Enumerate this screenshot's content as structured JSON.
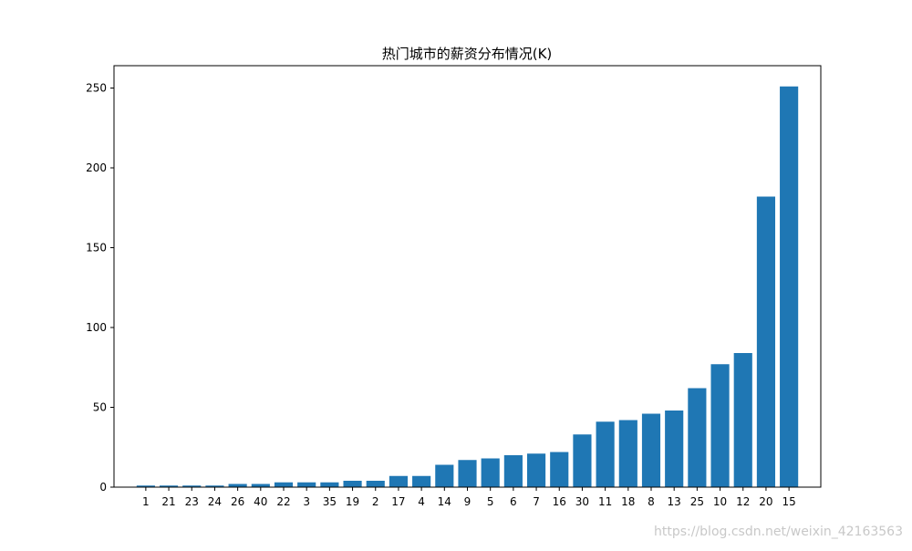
{
  "chart_data": {
    "type": "bar",
    "title": "热门城市的薪资分布情况(K)",
    "xlabel": "",
    "ylabel": "",
    "categories": [
      "1",
      "21",
      "23",
      "24",
      "26",
      "40",
      "22",
      "3",
      "35",
      "19",
      "2",
      "17",
      "4",
      "14",
      "9",
      "5",
      "6",
      "7",
      "16",
      "30",
      "11",
      "18",
      "8",
      "13",
      "25",
      "10",
      "12",
      "20",
      "15"
    ],
    "values": [
      1,
      1,
      1,
      1,
      2,
      2,
      3,
      3,
      3,
      4,
      4,
      7,
      7,
      14,
      17,
      18,
      20,
      21,
      22,
      33,
      41,
      42,
      46,
      48,
      62,
      77,
      84,
      182,
      251
    ],
    "ylim": [
      0,
      264
    ],
    "yticks": [
      0,
      50,
      100,
      150,
      200,
      250
    ],
    "grid": false,
    "legend": "none",
    "bar_color": "#1f77b4"
  },
  "watermark": "https://blog.csdn.net/weixin_42163563"
}
